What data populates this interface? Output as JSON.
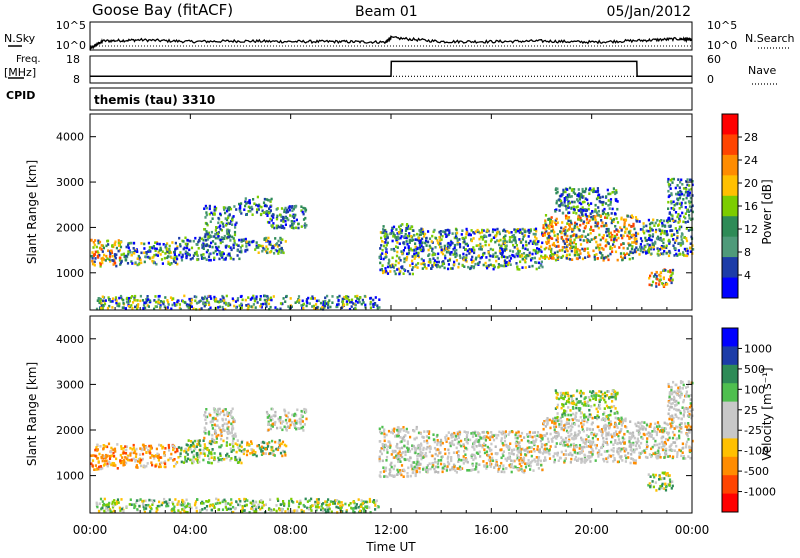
{
  "header": {
    "station": "Goose Bay (fitACF)",
    "beam": "Beam 01",
    "date": "05/Jan/2012"
  },
  "top_panels": {
    "nsky_label": "N.Sky",
    "nsearch_label": "N.Search",
    "nsky_ticks": [
      "10^5",
      "10^0"
    ],
    "nsearch_ticks": [
      "10^5",
      "10^0"
    ],
    "freq_label_1": "Freq.",
    "freq_label_2": "[MHz]",
    "freq_ticks": [
      "18",
      "8"
    ],
    "nave_label": "Nave",
    "nave_ticks": [
      "60",
      "0"
    ],
    "cpid_label": "CPID",
    "cpid_value": "themis (tau) 3310"
  },
  "chart_data": [
    {
      "type": "line",
      "name": "noise",
      "x": [
        0,
        0.5,
        2,
        4,
        6,
        8,
        10,
        11.8,
        12,
        14,
        16,
        18,
        20,
        22,
        23.5,
        24
      ],
      "nsky_log": [
        0.2,
        1.6,
        1.8,
        1.5,
        1.6,
        1.5,
        1.5,
        1.4,
        2.2,
        1.5,
        1.5,
        1.6,
        1.4,
        1.7,
        2.0,
        1.8
      ],
      "ylim": [
        0,
        5
      ]
    },
    {
      "type": "line",
      "name": "frequency_nave",
      "x": [
        0,
        12,
        12.01,
        21.8,
        21.81,
        24
      ],
      "freq_mhz": [
        10.5,
        10.5,
        16.0,
        16.0,
        10.5,
        10.5
      ],
      "nave": [
        15,
        15,
        15,
        15,
        15,
        15
      ],
      "ylim_freq": [
        8,
        18
      ],
      "ylim_nave": [
        0,
        60
      ]
    },
    {
      "type": "heatmap",
      "name": "power",
      "ylabel": "Slant Range [km]",
      "ylim": [
        180,
        4500
      ],
      "xlim": [
        0,
        24
      ],
      "yticks": [
        "1000",
        "2000",
        "3000",
        "4000"
      ],
      "colorbar_label": "Power [dB]",
      "colorbar_ticks": [
        "28",
        "24",
        "20",
        "16",
        "12",
        "8",
        "4"
      ],
      "colorbar_colors": [
        "#ff0000",
        "#ff4400",
        "#ff8c00",
        "#ffc000",
        "#7ccd00",
        "#2e8b57",
        "#4f9a7a",
        "#1c3ca8",
        "#0000ff"
      ],
      "regions": [
        {
          "t0": 0.0,
          "t1": 1.3,
          "r0": 1150,
          "r1": 1750,
          "level": "high"
        },
        {
          "t0": 1.3,
          "t1": 3.5,
          "r0": 1200,
          "r1": 1700,
          "level": "mid"
        },
        {
          "t0": 3.5,
          "t1": 6.0,
          "r0": 1300,
          "r1": 1800,
          "level": "low"
        },
        {
          "t0": 6.0,
          "t1": 7.8,
          "r0": 1450,
          "r1": 1800,
          "level": "mid"
        },
        {
          "t0": 4.5,
          "t1": 5.8,
          "r0": 1800,
          "r1": 2500,
          "level": "low"
        },
        {
          "t0": 5.8,
          "t1": 7.2,
          "r0": 2300,
          "r1": 2700,
          "level": "low"
        },
        {
          "t0": 7.0,
          "t1": 8.6,
          "r0": 2000,
          "r1": 2500,
          "level": "low"
        },
        {
          "t0": 11.5,
          "t1": 13.0,
          "r0": 1000,
          "r1": 2100,
          "level": "mid"
        },
        {
          "t0": 13.0,
          "t1": 18.0,
          "r0": 1100,
          "r1": 2000,
          "level": "mid"
        },
        {
          "t0": 18.0,
          "t1": 21.8,
          "r0": 1300,
          "r1": 2300,
          "level": "high"
        },
        {
          "t0": 18.5,
          "t1": 21.0,
          "r0": 2300,
          "r1": 2900,
          "level": "low"
        },
        {
          "t0": 21.8,
          "t1": 24.0,
          "r0": 1400,
          "r1": 2200,
          "level": "mid"
        },
        {
          "t0": 22.2,
          "t1": 23.2,
          "r0": 700,
          "r1": 1100,
          "level": "high"
        },
        {
          "t0": 23.0,
          "t1": 24.0,
          "r0": 2200,
          "r1": 3100,
          "level": "low"
        },
        {
          "t0": 0.2,
          "t1": 11.5,
          "r0": 220,
          "r1": 520,
          "level": "mid"
        }
      ]
    },
    {
      "type": "heatmap",
      "name": "velocity",
      "xlabel": "Time UT",
      "ylabel": "Slant Range [km]",
      "ylim": [
        180,
        4500
      ],
      "xlim": [
        0,
        24
      ],
      "xticks": [
        "00:00",
        "04:00",
        "08:00",
        "12:00",
        "16:00",
        "20:00",
        "00:00"
      ],
      "yticks": [
        "1000",
        "2000",
        "3000",
        "4000"
      ],
      "colorbar_label": "Velocity [m s⁻¹]",
      "colorbar_ticks": [
        "1000",
        "500",
        "100",
        "25",
        "-25",
        "-100",
        "-500",
        "-1000"
      ],
      "colorbar_colors": [
        "#0000ff",
        "#1c3ca8",
        "#2e8b57",
        "#4fbf4f",
        "#c8c8c8",
        "#c8c8c8",
        "#ffc000",
        "#ff8c00",
        "#ff4400",
        "#ff0000"
      ],
      "regions": [
        {
          "t0": 0.0,
          "t1": 1.3,
          "r0": 1150,
          "r1": 1750,
          "level": "neg"
        },
        {
          "t0": 1.3,
          "t1": 3.5,
          "r0": 1200,
          "r1": 1700,
          "level": "neg"
        },
        {
          "t0": 3.5,
          "t1": 6.0,
          "r0": 1300,
          "r1": 1800,
          "level": "pos"
        },
        {
          "t0": 6.0,
          "t1": 7.8,
          "r0": 1450,
          "r1": 1800,
          "level": "mixed"
        },
        {
          "t0": 4.5,
          "t1": 5.8,
          "r0": 1800,
          "r1": 2500,
          "level": "grey"
        },
        {
          "t0": 7.0,
          "t1": 8.6,
          "r0": 2000,
          "r1": 2500,
          "level": "grey"
        },
        {
          "t0": 11.5,
          "t1": 13.0,
          "r0": 1000,
          "r1": 2100,
          "level": "grey"
        },
        {
          "t0": 13.0,
          "t1": 18.0,
          "r0": 1100,
          "r1": 2000,
          "level": "grey"
        },
        {
          "t0": 18.0,
          "t1": 21.8,
          "r0": 1300,
          "r1": 2300,
          "level": "grey"
        },
        {
          "t0": 18.5,
          "t1": 21.0,
          "r0": 2300,
          "r1": 2900,
          "level": "pos"
        },
        {
          "t0": 21.8,
          "t1": 24.0,
          "r0": 1400,
          "r1": 2200,
          "level": "grey"
        },
        {
          "t0": 22.2,
          "t1": 23.2,
          "r0": 700,
          "r1": 1100,
          "level": "pos"
        },
        {
          "t0": 23.0,
          "t1": 24.0,
          "r0": 2200,
          "r1": 3100,
          "level": "grey"
        },
        {
          "t0": 0.2,
          "t1": 11.5,
          "r0": 220,
          "r1": 520,
          "level": "pos"
        }
      ]
    }
  ]
}
